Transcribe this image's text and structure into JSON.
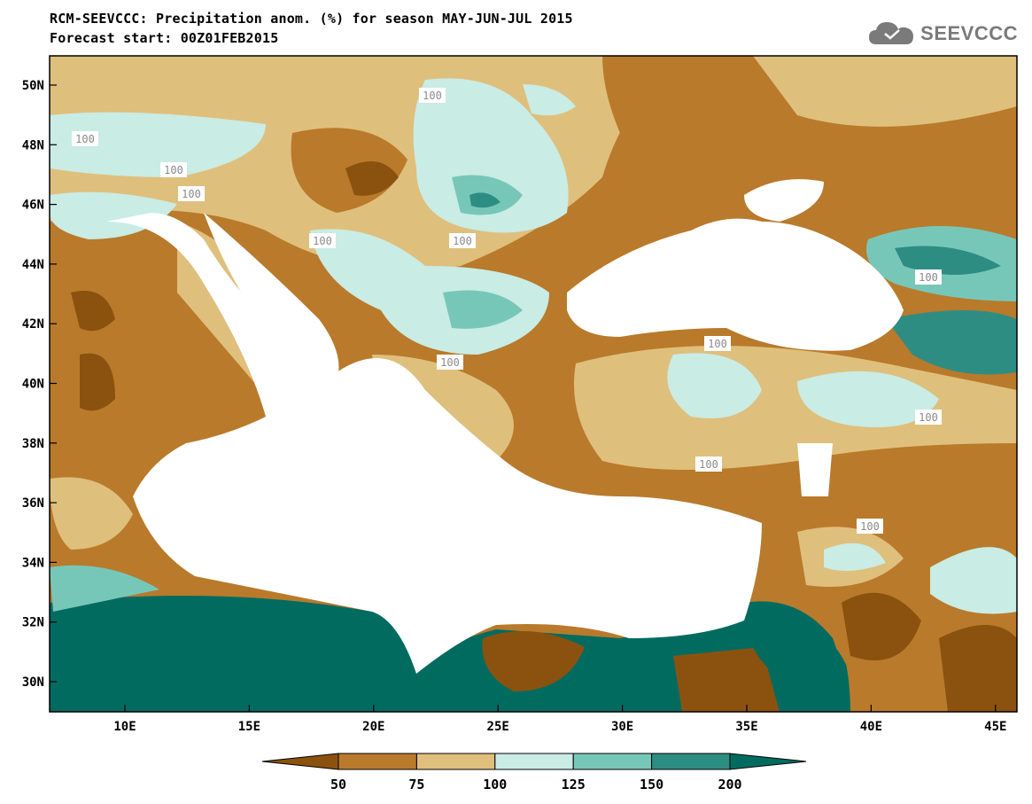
{
  "title": {
    "line1": "RCM-SEEVCCC: Precipitation anom. (%) for season MAY-JUN-JUL 2015",
    "line2": "Forecast start: 00Z01FEB2015"
  },
  "logo": {
    "text": "SEEVCCC",
    "icon": "cloud-icon"
  },
  "map": {
    "lat_labels": [
      "50N",
      "48N",
      "46N",
      "44N",
      "42N",
      "40N",
      "38N",
      "36N",
      "34N",
      "32N",
      "30N"
    ],
    "lon_labels": [
      "10E",
      "15E",
      "20E",
      "25E",
      "30E",
      "35E",
      "40E",
      "45E"
    ],
    "contour_labels": [
      "100",
      "100",
      "100",
      "100",
      "100",
      "100",
      "100",
      "100",
      "100",
      "100",
      "100",
      "100"
    ]
  },
  "colorbar": {
    "labels": [
      "50",
      "75",
      "100",
      "125",
      "150",
      "200"
    ],
    "colors": [
      "#8b520f",
      "#b97a2b",
      "#dfbf7c",
      "#c9ece4",
      "#77c7b9",
      "#2e8d83",
      "#026b60"
    ]
  }
}
